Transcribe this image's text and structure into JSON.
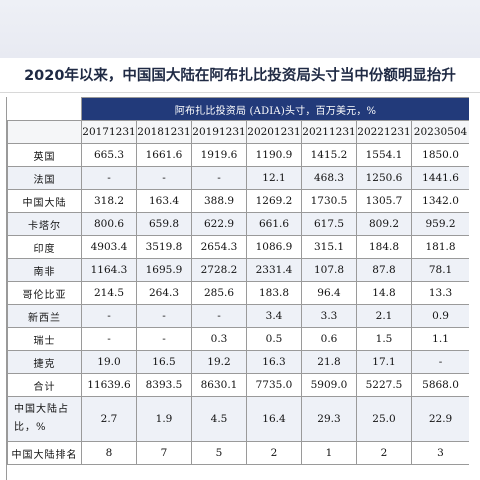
{
  "headline": "2020年以来，中国国大陆在阿布扎比投资局头寸当中份额明显抬升",
  "table": {
    "caption": "阿布扎比投资局 (ADIA)头寸，百万美元，%",
    "columns": [
      "20171231",
      "20181231",
      "20191231",
      "20201231",
      "20211231",
      "20221231",
      "20230504"
    ],
    "rows": [
      {
        "label": "英国",
        "values": [
          "665.3",
          "1661.6",
          "1919.6",
          "1190.9",
          "1415.2",
          "1554.1",
          "1850.0"
        ]
      },
      {
        "label": "法国",
        "values": [
          "-",
          "-",
          "-",
          "12.1",
          "468.3",
          "1250.6",
          "1441.6"
        ]
      },
      {
        "label": "中国大陆",
        "values": [
          "318.2",
          "163.4",
          "388.9",
          "1269.2",
          "1730.5",
          "1305.7",
          "1342.0"
        ]
      },
      {
        "label": "卡塔尔",
        "values": [
          "800.6",
          "659.8",
          "622.9",
          "661.6",
          "617.5",
          "809.2",
          "959.2"
        ]
      },
      {
        "label": "印度",
        "values": [
          "4903.4",
          "3519.8",
          "2654.3",
          "1086.9",
          "315.1",
          "184.8",
          "181.8"
        ]
      },
      {
        "label": "南非",
        "values": [
          "1164.3",
          "1695.9",
          "2728.2",
          "2331.4",
          "107.8",
          "87.8",
          "78.1"
        ]
      },
      {
        "label": "哥伦比亚",
        "values": [
          "214.5",
          "264.3",
          "285.6",
          "183.8",
          "96.4",
          "14.8",
          "13.3"
        ]
      },
      {
        "label": "新西兰",
        "values": [
          "-",
          "-",
          "-",
          "3.4",
          "3.3",
          "2.1",
          "0.9"
        ]
      },
      {
        "label": "瑞士",
        "values": [
          "-",
          "-",
          "0.3",
          "0.5",
          "0.6",
          "1.5",
          "1.1"
        ]
      },
      {
        "label": "捷克",
        "values": [
          "19.0",
          "16.5",
          "19.2",
          "16.3",
          "21.8",
          "17.1",
          "-"
        ]
      },
      {
        "label": "合计",
        "values": [
          "11639.6",
          "8393.5",
          "8630.1",
          "7735.0",
          "5909.0",
          "5227.5",
          "5868.0"
        ]
      },
      {
        "label": "中国大陆占比，%",
        "values": [
          "2.7",
          "1.9",
          "4.5",
          "16.4",
          "29.3",
          "25.0",
          "22.9"
        ],
        "tall": true
      },
      {
        "label": "中国大陆排名",
        "values": [
          "8",
          "7",
          "5",
          "2",
          "1",
          "2",
          "3"
        ]
      }
    ]
  },
  "colors": {
    "caption_bg": "#223a7a",
    "row_alt_bg": "#eef1f7"
  }
}
